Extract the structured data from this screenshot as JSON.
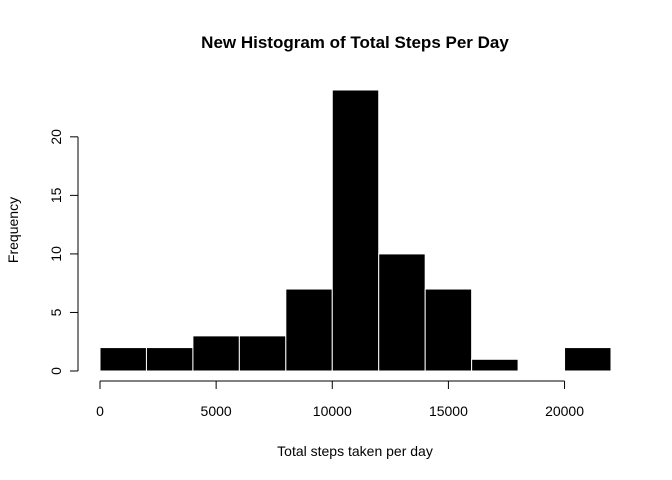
{
  "chart_data": {
    "type": "bar",
    "title": "New Histogram of Total Steps Per Day",
    "xlabel": "Total steps taken per day",
    "ylabel": "Frequency",
    "bin_edges": [
      0,
      2000,
      4000,
      6000,
      8000,
      10000,
      12000,
      14000,
      16000,
      18000,
      20000,
      22000
    ],
    "values": [
      2,
      2,
      3,
      3,
      7,
      24,
      10,
      7,
      1,
      0,
      2
    ],
    "xlim": [
      0,
      22000
    ],
    "ylim": [
      0,
      24
    ],
    "x_ticks": [
      0,
      5000,
      10000,
      15000,
      20000
    ],
    "y_ticks": [
      0,
      5,
      10,
      15,
      20
    ],
    "grid": false,
    "legend": "none",
    "bar_color": "#000000",
    "bar_border_color": "#ffffff"
  }
}
